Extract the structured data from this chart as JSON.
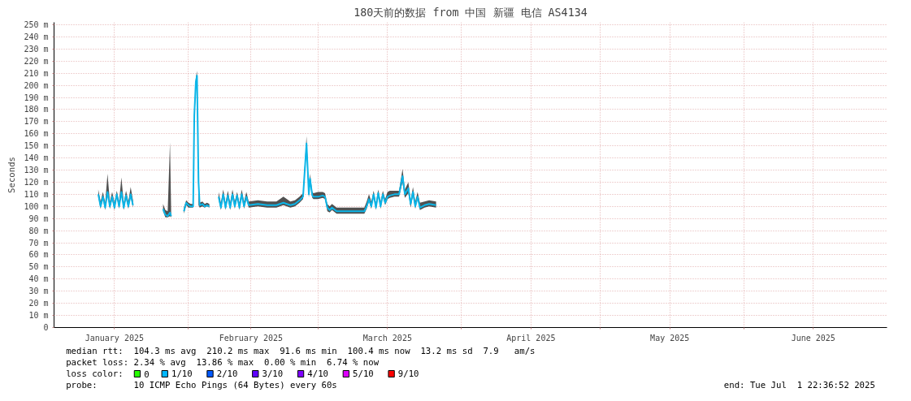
{
  "chart_data": {
    "type": "line",
    "title": "180天前的数据 from 中国 新疆 电信 AS4134",
    "ylabel": "Seconds",
    "xlim": [
      "2025-01-02T22:36",
      "2025-07-01T22:36"
    ],
    "xticks": [
      {
        "value": "2025-01-16",
        "label": "January 2025"
      },
      {
        "value": "2025-02-01",
        "label": null
      },
      {
        "value": "2025-02-14T12:00",
        "label": "February 2025"
      },
      {
        "value": "2025-03-01",
        "label": null
      },
      {
        "value": "2025-03-16",
        "label": "March 2025"
      },
      {
        "value": "2025-04-01",
        "label": null
      },
      {
        "value": "2025-04-16",
        "label": "April 2025"
      },
      {
        "value": "2025-05-01",
        "label": null
      },
      {
        "value": "2025-05-16",
        "label": "May 2025"
      },
      {
        "value": "2025-06-01",
        "label": null
      },
      {
        "value": "2025-06-16",
        "label": "June 2025"
      }
    ],
    "ylim": [
      0,
      252
    ],
    "yticks": [
      {
        "value": 0,
        "label": "0"
      },
      {
        "value": 10,
        "label": "10 m"
      },
      {
        "value": 20,
        "label": "20 m"
      },
      {
        "value": 30,
        "label": "30 m"
      },
      {
        "value": 40,
        "label": "40 m"
      },
      {
        "value": 50,
        "label": "50 m"
      },
      {
        "value": 60,
        "label": "60 m"
      },
      {
        "value": 70,
        "label": "70 m"
      },
      {
        "value": 80,
        "label": "80 m"
      },
      {
        "value": 90,
        "label": "90 m"
      },
      {
        "value": 100,
        "label": "100 m"
      },
      {
        "value": 110,
        "label": "110 m"
      },
      {
        "value": 120,
        "label": "120 m"
      },
      {
        "value": 130,
        "label": "130 m"
      },
      {
        "value": 140,
        "label": "140 m"
      },
      {
        "value": 150,
        "label": "150 m"
      },
      {
        "value": 160,
        "label": "160 m"
      },
      {
        "value": 170,
        "label": "170 m"
      },
      {
        "value": 180,
        "label": "180 m"
      },
      {
        "value": 190,
        "label": "190 m"
      },
      {
        "value": 200,
        "label": "200 m"
      },
      {
        "value": 210,
        "label": "210 m"
      },
      {
        "value": 220,
        "label": "220 m"
      },
      {
        "value": 230,
        "label": "230 m"
      },
      {
        "value": 240,
        "label": "240 m"
      },
      {
        "value": 250,
        "label": "250 m"
      }
    ],
    "grid": true,
    "legend": "bottom",
    "marker": "none",
    "line_style": "solid",
    "series": [
      {
        "color": "#0bb5e8",
        "x": [
          "2025-01-12T12:00",
          "2025-01-13T00:00",
          "2025-01-13T12:00",
          "2025-01-14T00:00",
          "2025-01-14T12:00",
          "2025-01-15T00:00",
          "2025-01-15T12:00",
          "2025-01-16T00:00",
          "2025-01-16T12:00",
          "2025-01-17T00:00",
          "2025-01-17T12:00",
          "2025-01-18T00:00",
          "2025-01-18T12:00",
          "2025-01-19T00:00",
          "2025-01-19T12:00",
          "2025-01-20T00:00",
          "2025-01-23T00:00",
          "2025-01-26T12:00",
          "2025-01-27T00:00",
          "2025-01-27T12:00",
          "2025-01-28T00:00",
          "2025-01-28T06:00",
          "2025-01-30T00:00",
          "2025-01-31T00:00",
          "2025-01-31T12:00",
          "2025-02-01T00:00",
          "2025-02-01T12:00",
          "2025-02-02T00:00",
          "2025-02-02T06:00",
          "2025-02-02T14:00",
          "2025-02-02T20:00",
          "2025-02-03T04:00",
          "2025-02-03T10:00",
          "2025-02-04T00:00",
          "2025-02-04T12:00",
          "2025-02-05T00:00",
          "2025-02-05T12:00",
          "2025-02-06T12:00",
          "2025-02-07T12:00",
          "2025-02-08T00:00",
          "2025-02-08T12:00",
          "2025-02-09T00:00",
          "2025-02-09T12:00",
          "2025-02-10T00:00",
          "2025-02-10T12:00",
          "2025-02-11T00:00",
          "2025-02-11T12:00",
          "2025-02-12T00:00",
          "2025-02-12T12:00",
          "2025-02-13T00:00",
          "2025-02-13T12:00",
          "2025-02-14T00:00",
          "2025-02-16T00:00",
          "2025-02-18T00:00",
          "2025-02-20T00:00",
          "2025-02-21T12:00",
          "2025-02-23T00:00",
          "2025-02-24T00:00",
          "2025-02-25T00:00",
          "2025-02-25T18:00",
          "2025-02-26T12:00",
          "2025-02-27T00:00",
          "2025-02-27T06:00",
          "2025-02-27T18:00",
          "2025-02-28T00:00",
          "2025-03-01T00:00",
          "2025-03-02T00:00",
          "2025-03-02T12:00",
          "2025-03-03T00:00",
          "2025-03-03T12:00",
          "2025-03-04T00:00",
          "2025-03-05T00:00",
          "2025-03-07T00:00",
          "2025-03-09T00:00",
          "2025-03-11T00:00",
          "2025-03-11T12:00",
          "2025-03-12T00:00",
          "2025-03-12T12:00",
          "2025-03-13T00:00",
          "2025-03-13T12:00",
          "2025-03-14T00:00",
          "2025-03-14T12:00",
          "2025-03-15T00:00",
          "2025-03-15T12:00",
          "2025-03-16T00:00",
          "2025-03-16T12:00",
          "2025-03-17T12:00",
          "2025-03-18T12:00",
          "2025-03-19T06:00",
          "2025-03-19T18:00",
          "2025-03-20T12:00",
          "2025-03-21T00:00",
          "2025-03-21T12:00",
          "2025-03-22T00:00",
          "2025-03-22T12:00",
          "2025-03-23T00:00",
          "2025-03-24T00:00",
          "2025-03-25T00:00",
          "2025-03-26T12:00"
        ],
        "values": [
          110,
          100,
          108,
          99,
          112,
          100,
          108,
          99,
          110,
          100,
          112,
          99,
          109,
          100,
          110,
          101,
          null,
          98,
          93,
          92,
          95,
          92,
          null,
          96,
          103,
          101,
          100,
          100,
          175,
          203,
          208,
          120,
          101,
          102,
          100,
          101,
          100,
          null,
          108,
          99,
          110,
          99,
          109,
          99,
          110,
          100,
          109,
          99,
          110,
          100,
          108,
          101,
          102,
          101,
          101,
          103,
          101,
          102,
          105,
          108,
          152,
          110,
          123,
          109,
          108,
          108,
          109,
          108,
          99,
          97,
          99,
          96,
          96,
          96,
          96,
          100,
          106,
          100,
          110,
          99,
          111,
          100,
          110,
          103,
          108,
          109,
          110,
          110,
          125,
          110,
          115,
          102,
          112,
          100,
          108,
          99,
          101,
          102,
          101
        ],
        "lower": [
          108,
          98,
          106,
          97,
          110,
          98,
          106,
          97,
          108,
          98,
          110,
          97,
          107,
          98,
          108,
          99,
          null,
          96,
          91,
          91,
          92,
          91,
          null,
          94,
          101,
          99,
          99,
          99,
          170,
          198,
          200,
          101,
          99,
          100,
          99,
          100,
          99,
          null,
          106,
          97,
          108,
          97,
          107,
          97,
          108,
          98,
          107,
          97,
          108,
          98,
          106,
          99,
          100,
          99,
          99,
          101,
          99,
          100,
          103,
          106,
          148,
          107,
          120,
          107,
          106,
          106,
          107,
          106,
          96,
          95,
          97,
          94,
          94,
          94,
          94,
          98,
          104,
          98,
          108,
          97,
          109,
          98,
          108,
          101,
          106,
          107,
          108,
          108,
          120,
          107,
          111,
          99,
          109,
          98,
          106,
          97,
          99,
          100,
          99
        ],
        "upper": [
          114,
          104,
          112,
          103,
          127,
          104,
          112,
          103,
          113,
          104,
          124,
          103,
          113,
          104,
          116,
          105,
          null,
          102,
          97,
          96,
          153,
          95,
          null,
          99,
          105,
          103,
          102,
          102,
          178,
          206,
          212,
          122,
          103,
          104,
          102,
          103,
          102,
          null,
          112,
          103,
          114,
          103,
          113,
          103,
          114,
          104,
          112,
          103,
          114,
          104,
          112,
          104,
          105,
          104,
          104,
          108,
          104,
          105,
          108,
          111,
          158,
          113,
          127,
          112,
          111,
          112,
          112,
          111,
          102,
          100,
          102,
          99,
          99,
          99,
          99,
          104,
          110,
          104,
          113,
          103,
          114,
          104,
          113,
          106,
          112,
          113,
          113,
          113,
          131,
          114,
          120,
          105,
          116,
          104,
          112,
          103,
          104,
          105,
          104
        ]
      },
      {
        "name": "0",
        "color": "#26ff00"
      },
      {
        "name": "1/10",
        "color": "#00b8ff"
      },
      {
        "name": "2/10",
        "color": "#0059ff"
      },
      {
        "name": "3/10",
        "color": "#5e00ff"
      },
      {
        "name": "4/10",
        "color": "#7e00ff"
      },
      {
        "name": "5/10",
        "color": "#dd00ff"
      },
      {
        "name": "9/10",
        "color": "#ff0000"
      }
    ],
    "annotations": [
      "median rtt:  104.3 ms avg  210.2 ms max  91.6 ms min  100.4 ms now  13.2 ms sd  7.9   am/s",
      "packet loss: 2.34 % avg  13.86 % max  0.00 % min  6.74 % now",
      "loss color:",
      "probe:       10 ICMP Echo Pings (64 Bytes) every 60s",
      "end: Tue Jul  1 22:36:52 2025"
    ]
  }
}
